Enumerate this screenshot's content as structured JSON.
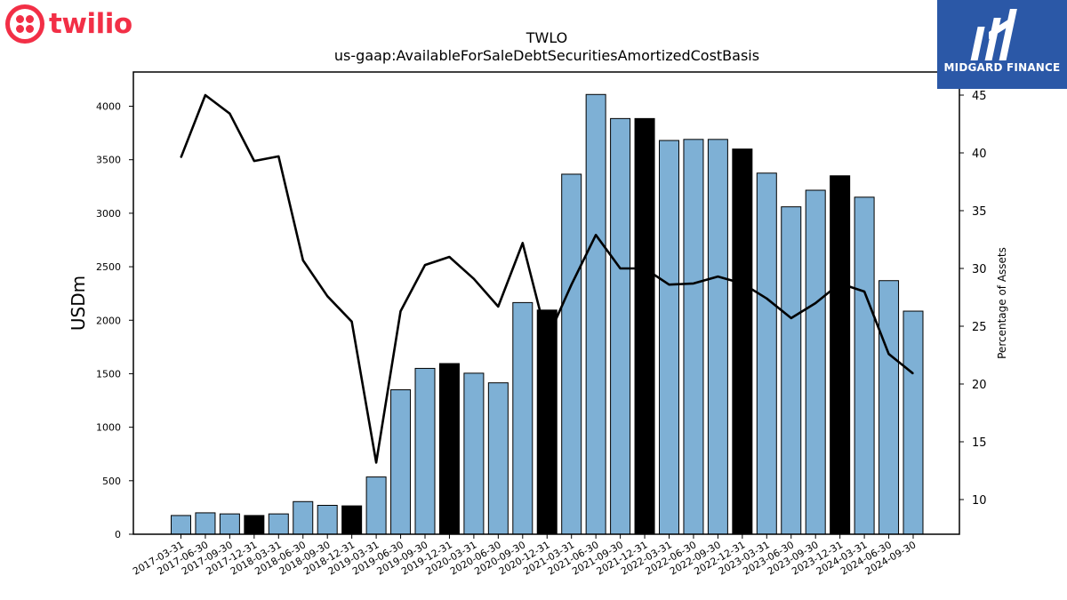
{
  "branding": {
    "left_logo_text": "twilio",
    "left_logo_color": "#f22f46",
    "right_logo_text": "MIDGARD FINANCE",
    "right_logo_color": "#2b58a7"
  },
  "chart_data": {
    "type": "bar",
    "title": "TWLO",
    "subtitle": "us-gaap:AvailableForSaleDebtSecuritiesAmortizedCostBasis",
    "ylabel": "USDm",
    "y2label": "Percentage of Assets",
    "ylim": [
      0,
      4320
    ],
    "y2lim": [
      7,
      47
    ],
    "yticks": [
      0,
      500,
      1000,
      1500,
      2000,
      2500,
      3000,
      3500,
      4000
    ],
    "y2ticks": [
      10,
      15,
      20,
      25,
      30,
      35,
      40,
      45
    ],
    "grid": false,
    "colors": {
      "bar": "#7eb0d5",
      "bar_q4": "#000000",
      "line": "#000000"
    },
    "categories": [
      "2017-03-31",
      "2017-06-30",
      "2017-09-30",
      "2017-12-31",
      "2018-03-31",
      "2018-06-30",
      "2018-09-30",
      "2018-12-31",
      "2019-03-31",
      "2019-06-30",
      "2019-09-30",
      "2019-12-31",
      "2020-03-31",
      "2020-06-30",
      "2020-09-30",
      "2020-12-31",
      "2021-03-31",
      "2021-06-30",
      "2021-09-30",
      "2021-12-31",
      "2022-03-31",
      "2022-06-30",
      "2022-09-30",
      "2022-12-31",
      "2023-03-31",
      "2023-06-30",
      "2023-09-30",
      "2023-12-31",
      "2024-03-31",
      "2024-06-30",
      "2024-09-30"
    ],
    "series": [
      {
        "type": "bar",
        "axis": "left",
        "values": [
          175,
          200,
          190,
          175,
          190,
          305,
          270,
          265,
          535,
          1350,
          1550,
          1595,
          1505,
          1415,
          2165,
          2095,
          3365,
          4110,
          3885,
          3885,
          3680,
          3690,
          3690,
          3600,
          3375,
          3060,
          3215,
          3350,
          3150,
          2370,
          2085
        ]
      },
      {
        "type": "line",
        "axis": "right",
        "values": [
          39.6,
          45.0,
          43.4,
          39.3,
          39.7,
          30.7,
          27.6,
          25.4,
          13.2,
          26.3,
          30.3,
          31.0,
          29.1,
          26.7,
          32.2,
          23.9,
          28.6,
          32.9,
          30.0,
          30.0,
          28.6,
          28.7,
          29.3,
          28.7,
          27.4,
          25.7,
          27.0,
          28.7,
          28.0,
          22.6,
          20.9
        ]
      }
    ]
  }
}
